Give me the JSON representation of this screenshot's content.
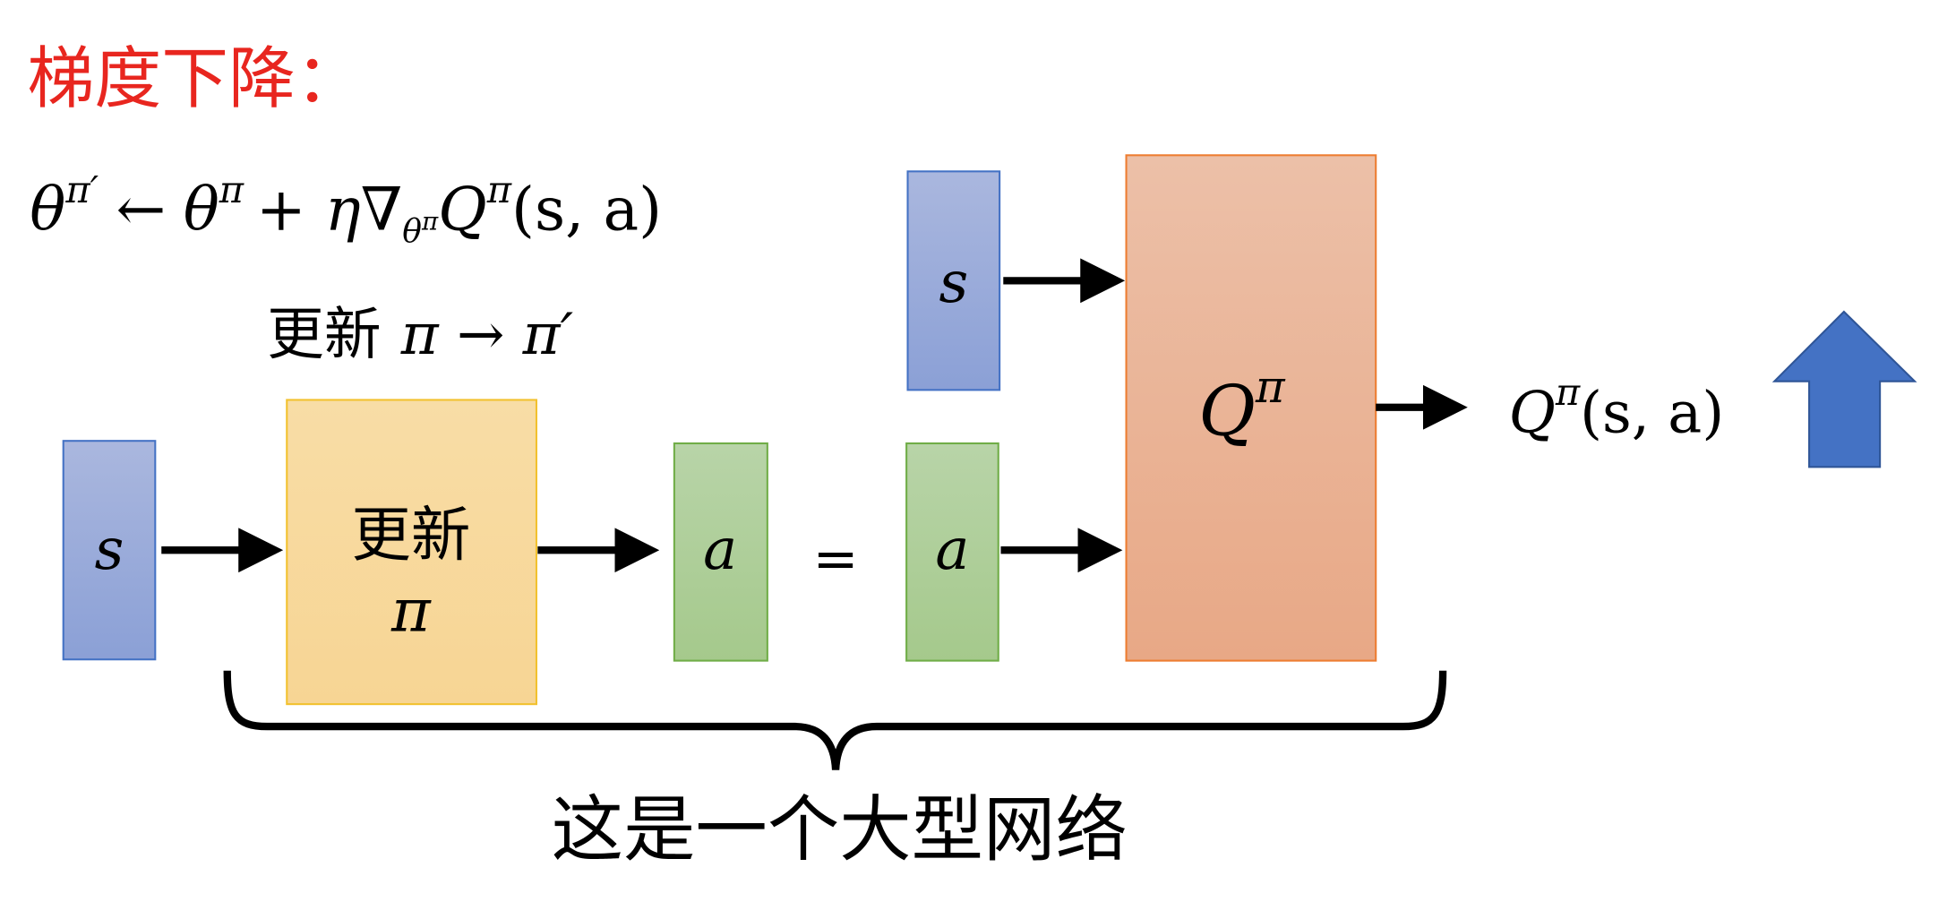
{
  "title": "梯度下降：",
  "formula": {
    "lhs": "θ",
    "lhs_sup": "π′",
    "arrow": "←",
    "rhs_theta": "θ",
    "rhs_theta_sup": "π",
    "plus_eta": "+ η∇",
    "nabla_sub": "θ",
    "nabla_sub_sup": "π",
    "q": "Q",
    "q_sup": "π",
    "args": "(s, a)"
  },
  "update_label": {
    "text": "更新",
    "math": "π → π′"
  },
  "blocks": {
    "state_left": "s",
    "policy_line1": "更新",
    "policy_line2": "π",
    "action_left": "a",
    "equals": "=",
    "action_right": "a",
    "state_top": "s",
    "q_net": "Q",
    "q_net_sup": "π"
  },
  "output": {
    "q": "Q",
    "q_sup": "π",
    "args": "(s, a)"
  },
  "caption": "这是一个大型网络",
  "colors": {
    "title": "#e8261f",
    "state_fill": "#8ea3d6",
    "state_border": "#4472c4",
    "policy_fill": "#f7d89c",
    "policy_border": "#f2c12e",
    "action_fill": "#a9cc92",
    "action_border": "#70ad47",
    "q_fill": "#eab094",
    "q_border": "#ed7d31",
    "up_arrow": "#4472c4"
  },
  "icons": {
    "increase": "up-arrow-icon"
  }
}
